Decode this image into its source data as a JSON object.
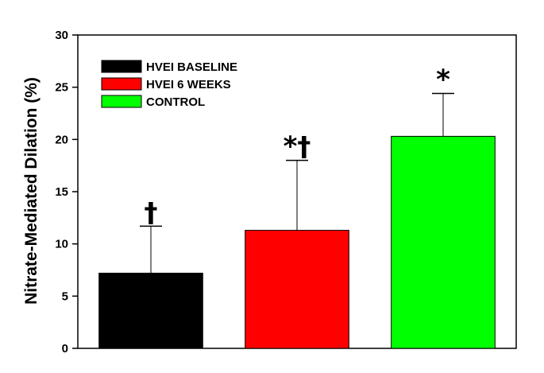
{
  "chart_data": {
    "type": "bar",
    "title": "",
    "xlabel": "",
    "ylabel": "Nitrate-Mediated Dilation (%)",
    "ylim": [
      0,
      30
    ],
    "yticks": [
      0,
      5,
      10,
      15,
      20,
      25,
      30
    ],
    "grid": false,
    "legend_position": "top-left",
    "series": [
      {
        "name": "HVEI BASELINE",
        "value": 7.2,
        "error": 4.5,
        "annotation": "†",
        "color": "#000000"
      },
      {
        "name": "HVEI 6 WEEKS",
        "value": 11.3,
        "error": 6.7,
        "annotation": "*†",
        "color": "#ff0000"
      },
      {
        "name": "CONTROL",
        "value": 20.3,
        "error": 4.1,
        "annotation": "*",
        "color": "#00ff00"
      }
    ]
  }
}
